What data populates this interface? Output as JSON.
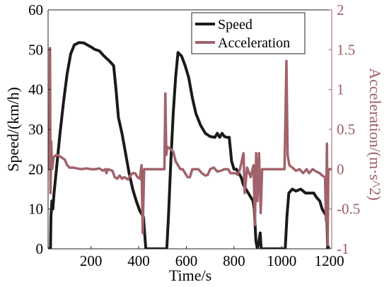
{
  "chart_data": {
    "type": "line",
    "xlabel": "Time/s",
    "ylabel_left": "Speed/(km/h)",
    "ylabel_right": "Acceleration/(m·s^2)",
    "xlim": [
      20,
      1210
    ],
    "ylim_left": [
      0,
      60
    ],
    "ylim_right": [
      -1,
      2
    ],
    "x_ticks": [
      "200",
      "400",
      "600",
      "800",
      "1000",
      "1200"
    ],
    "y_left_ticks": [
      "0",
      "10",
      "20",
      "30",
      "40",
      "50",
      "60"
    ],
    "y_right_ticks": [
      "-1",
      "-0.5",
      "0",
      "0.5",
      "1",
      "1.5",
      "2"
    ],
    "grid": false,
    "legend_position": "top-right",
    "colors": {
      "speed": "#1a1a1a",
      "acceleration": "#a2626a",
      "right_axis": "#9c5d60"
    },
    "series": [
      {
        "name": "Speed",
        "axis": "left",
        "points": [
          [
            20,
            0
          ],
          [
            25,
            0
          ],
          [
            30,
            0
          ],
          [
            32,
            8
          ],
          [
            36,
            12
          ],
          [
            40,
            10
          ],
          [
            45,
            14
          ],
          [
            55,
            20
          ],
          [
            70,
            29
          ],
          [
            85,
            37
          ],
          [
            100,
            44
          ],
          [
            115,
            49
          ],
          [
            130,
            51.2
          ],
          [
            150,
            51.8
          ],
          [
            170,
            51.7
          ],
          [
            185,
            51.2
          ],
          [
            200,
            50.7
          ],
          [
            215,
            50.1
          ],
          [
            235,
            49.7
          ],
          [
            255,
            48.4
          ],
          [
            275,
            47.3
          ],
          [
            295,
            46
          ],
          [
            305,
            40
          ],
          [
            315,
            33
          ],
          [
            330,
            29
          ],
          [
            345,
            24
          ],
          [
            360,
            19
          ],
          [
            375,
            15
          ],
          [
            390,
            12
          ],
          [
            405,
            9.5
          ],
          [
            420,
            8
          ],
          [
            425,
            4
          ],
          [
            430,
            0
          ],
          [
            440,
            0
          ],
          [
            500,
            0
          ],
          [
            518,
            0
          ],
          [
            525,
            8
          ],
          [
            535,
            22
          ],
          [
            545,
            34
          ],
          [
            555,
            43
          ],
          [
            565,
            49.3
          ],
          [
            580,
            48.4
          ],
          [
            595,
            46
          ],
          [
            610,
            43
          ],
          [
            625,
            38
          ],
          [
            640,
            34
          ],
          [
            660,
            31
          ],
          [
            680,
            29
          ],
          [
            700,
            28.2
          ],
          [
            720,
            28
          ],
          [
            730,
            29
          ],
          [
            740,
            28
          ],
          [
            750,
            29
          ],
          [
            760,
            28.2
          ],
          [
            770,
            28
          ],
          [
            780,
            28
          ],
          [
            790,
            22
          ],
          [
            800,
            20
          ],
          [
            810,
            20
          ],
          [
            820,
            19
          ],
          [
            830,
            18
          ],
          [
            840,
            16
          ],
          [
            850,
            15
          ],
          [
            860,
            14
          ],
          [
            870,
            13
          ],
          [
            880,
            12
          ],
          [
            885,
            10
          ],
          [
            892,
            2
          ],
          [
            898,
            0
          ],
          [
            905,
            2
          ],
          [
            910,
            4
          ],
          [
            914,
            0
          ],
          [
            930,
            0
          ],
          [
            960,
            0
          ],
          [
            1000,
            0
          ],
          [
            1015,
            0
          ],
          [
            1022,
            8
          ],
          [
            1030,
            14
          ],
          [
            1045,
            15
          ],
          [
            1060,
            14.5
          ],
          [
            1080,
            15
          ],
          [
            1100,
            14
          ],
          [
            1120,
            14
          ],
          [
            1135,
            14
          ],
          [
            1145,
            13
          ],
          [
            1160,
            12
          ],
          [
            1170,
            10
          ],
          [
            1180,
            9
          ],
          [
            1190,
            8
          ],
          [
            1193,
            0
          ],
          [
            1200,
            0
          ]
        ]
      },
      {
        "name": "Acceleration",
        "axis": "right",
        "points": [
          [
            20,
            0
          ],
          [
            26,
            0
          ],
          [
            28,
            1.52
          ],
          [
            30,
            -0.3
          ],
          [
            33,
            0.35
          ],
          [
            37,
            0
          ],
          [
            43,
            0.15
          ],
          [
            55,
            0.18
          ],
          [
            65,
            0.17
          ],
          [
            75,
            0.15
          ],
          [
            90,
            0.12
          ],
          [
            100,
            0.05
          ],
          [
            110,
            0.02
          ],
          [
            125,
            0.02
          ],
          [
            140,
            0.01
          ],
          [
            160,
            0
          ],
          [
            180,
            0.01
          ],
          [
            200,
            0
          ],
          [
            220,
            0
          ],
          [
            235,
            0.01
          ],
          [
            250,
            -0.02
          ],
          [
            260,
            0
          ],
          [
            265,
            -0.05
          ],
          [
            270,
            0
          ],
          [
            280,
            -0.01
          ],
          [
            290,
            -0.02
          ],
          [
            300,
            -0.1
          ],
          [
            310,
            -0.12
          ],
          [
            320,
            -0.08
          ],
          [
            330,
            -0.12
          ],
          [
            340,
            -0.1
          ],
          [
            355,
            -0.13
          ],
          [
            365,
            -0.08
          ],
          [
            375,
            -0.05
          ],
          [
            385,
            -0.05
          ],
          [
            395,
            -0.1
          ],
          [
            405,
            -0.12
          ],
          [
            412,
            0.05
          ],
          [
            417,
            -0.8
          ],
          [
            423,
            0
          ],
          [
            430,
            0
          ],
          [
            500,
            0
          ],
          [
            508,
            0
          ],
          [
            512,
            0.95
          ],
          [
            516,
            0.18
          ],
          [
            520,
            0.28
          ],
          [
            535,
            0.25
          ],
          [
            545,
            0.22
          ],
          [
            555,
            0.1
          ],
          [
            565,
            0.05
          ],
          [
            575,
            0
          ],
          [
            585,
            0
          ],
          [
            595,
            -0.05
          ],
          [
            605,
            -0.1
          ],
          [
            615,
            -0.1
          ],
          [
            625,
            0
          ],
          [
            635,
            0
          ],
          [
            650,
            0
          ],
          [
            665,
            -0.05
          ],
          [
            680,
            -0.08
          ],
          [
            690,
            -0.07
          ],
          [
            700,
            0
          ],
          [
            715,
            0.02
          ],
          [
            730,
            -0.03
          ],
          [
            745,
            -0.02
          ],
          [
            760,
            0
          ],
          [
            775,
            0
          ],
          [
            785,
            -0.05
          ],
          [
            795,
            -0.05
          ],
          [
            805,
            -0.05
          ],
          [
            815,
            -0.07
          ],
          [
            825,
            0
          ],
          [
            840,
            0.2
          ],
          [
            845,
            -0.3
          ],
          [
            855,
            0.02
          ],
          [
            870,
            -0.1
          ],
          [
            882,
            0.05
          ],
          [
            888,
            -0.7
          ],
          [
            893,
            0.2
          ],
          [
            898,
            -0.4
          ],
          [
            905,
            0.2
          ],
          [
            912,
            -0.55
          ],
          [
            918,
            0
          ],
          [
            935,
            0
          ],
          [
            960,
            0
          ],
          [
            1000,
            0
          ],
          [
            1012,
            0
          ],
          [
            1020,
            1.36
          ],
          [
            1025,
            0.18
          ],
          [
            1032,
            0.05
          ],
          [
            1045,
            0.02
          ],
          [
            1060,
            -0.02
          ],
          [
            1075,
            0
          ],
          [
            1090,
            -0.05
          ],
          [
            1105,
            0
          ],
          [
            1115,
            -0.05
          ],
          [
            1130,
            0
          ],
          [
            1145,
            -0.03
          ],
          [
            1160,
            -0.05
          ],
          [
            1170,
            -0.08
          ],
          [
            1182,
            -0.1
          ],
          [
            1186,
            -0.65
          ],
          [
            1190,
            0.32
          ],
          [
            1193,
            -0.95
          ],
          [
            1196,
            0
          ],
          [
            1210,
            0
          ]
        ]
      }
    ]
  }
}
